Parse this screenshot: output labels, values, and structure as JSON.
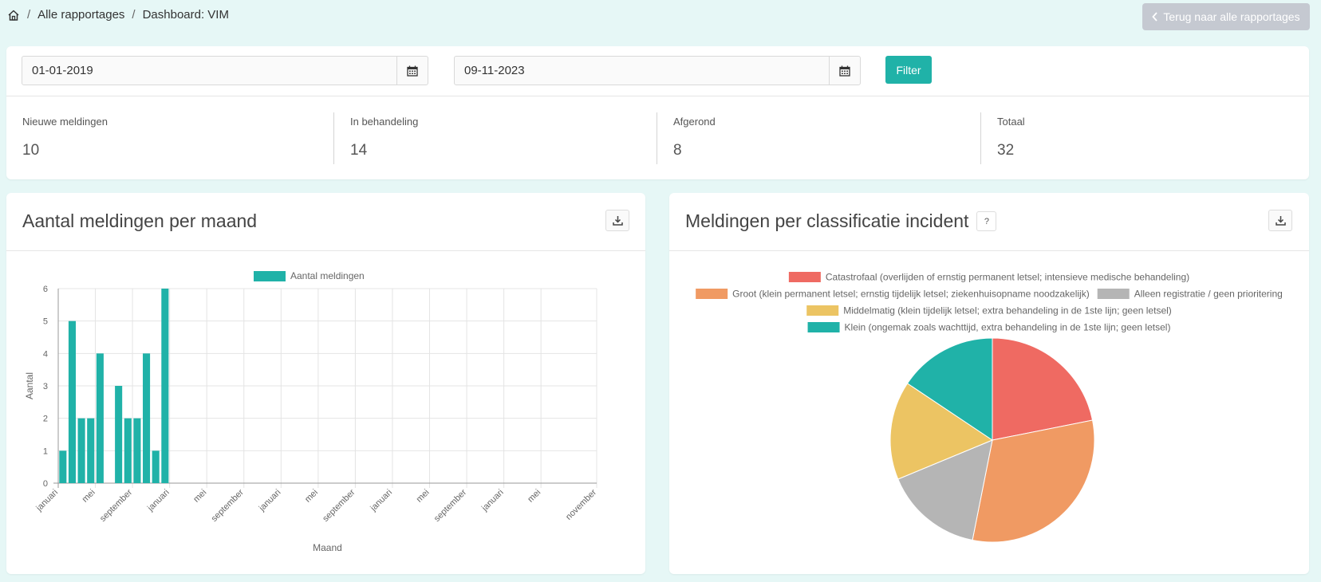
{
  "breadcrumb": {
    "home_icon": "home-icon",
    "items": [
      "Alle rapportages",
      "Dashboard: VIM"
    ]
  },
  "back_button": {
    "label": "Terug naar alle rapportages",
    "icon": "chevron-left-icon"
  },
  "filter": {
    "start_date": "01-01-2019",
    "end_date": "09-11-2023",
    "button_label": "Filter",
    "calendar_icon": "calendar-icon"
  },
  "stats": [
    {
      "label": "Nieuwe meldingen",
      "value": "10"
    },
    {
      "label": "In behandeling",
      "value": "14"
    },
    {
      "label": "Afgerond",
      "value": "8"
    },
    {
      "label": "Totaal",
      "value": "32"
    }
  ],
  "colors": {
    "accent": "#20b2a8",
    "back_button": "#c5c9d1"
  },
  "bar_panel": {
    "title": "Aantal meldingen per maand",
    "download_icon": "download-icon"
  },
  "pie_panel": {
    "title": "Meldingen per classificatie incident",
    "help_label": "?",
    "download_icon": "download-icon"
  },
  "chart_data": [
    {
      "type": "bar",
      "ylabel": "Aantal",
      "xlabel": "Maand",
      "ylim": [
        0,
        6
      ],
      "yticks": [
        0,
        1,
        2,
        3,
        4,
        5,
        6
      ],
      "grid": true,
      "legend_position": "top",
      "tick_labels": [
        "januari",
        "mei",
        "september",
        "januari",
        "mei",
        "september",
        "januari",
        "mei",
        "september",
        "januari",
        "mei",
        "september",
        "januari",
        "mei",
        "november"
      ],
      "tick_months": [
        0,
        4,
        8,
        12,
        16,
        20,
        24,
        28,
        32,
        36,
        40,
        44,
        48,
        52,
        58
      ],
      "month_count": 59,
      "series": [
        {
          "name": "Aantal meldingen",
          "color": "#20b2a8",
          "values": [
            1,
            5,
            2,
            2,
            4,
            0,
            3,
            2,
            2,
            4,
            1,
            6
          ]
        }
      ]
    },
    {
      "type": "pie",
      "legend_position": "top",
      "slices": [
        {
          "label": "Catastrofaal (overlijden of ernstig permanent letsel; intensieve medische behandeling)",
          "value": 7,
          "color": "#ef6a62"
        },
        {
          "label": "Groot (klein permanent letsel; ernstig tijdelijk letsel; ziekenhuisopname noodzakelijk)",
          "value": 10,
          "color": "#f09a63"
        },
        {
          "label": "Alleen registratie / geen prioritering",
          "value": 5,
          "color": "#b5b5b5"
        },
        {
          "label": "Middelmatig (klein tijdelijk letsel; extra behandeling in de 1ste lijn; geen letsel)",
          "value": 5,
          "color": "#ecc463"
        },
        {
          "label": "Klein (ongemak zoals wachttijd, extra behandeling in de 1ste lijn; geen letsel)",
          "value": 5,
          "color": "#20b2a8"
        }
      ]
    }
  ]
}
